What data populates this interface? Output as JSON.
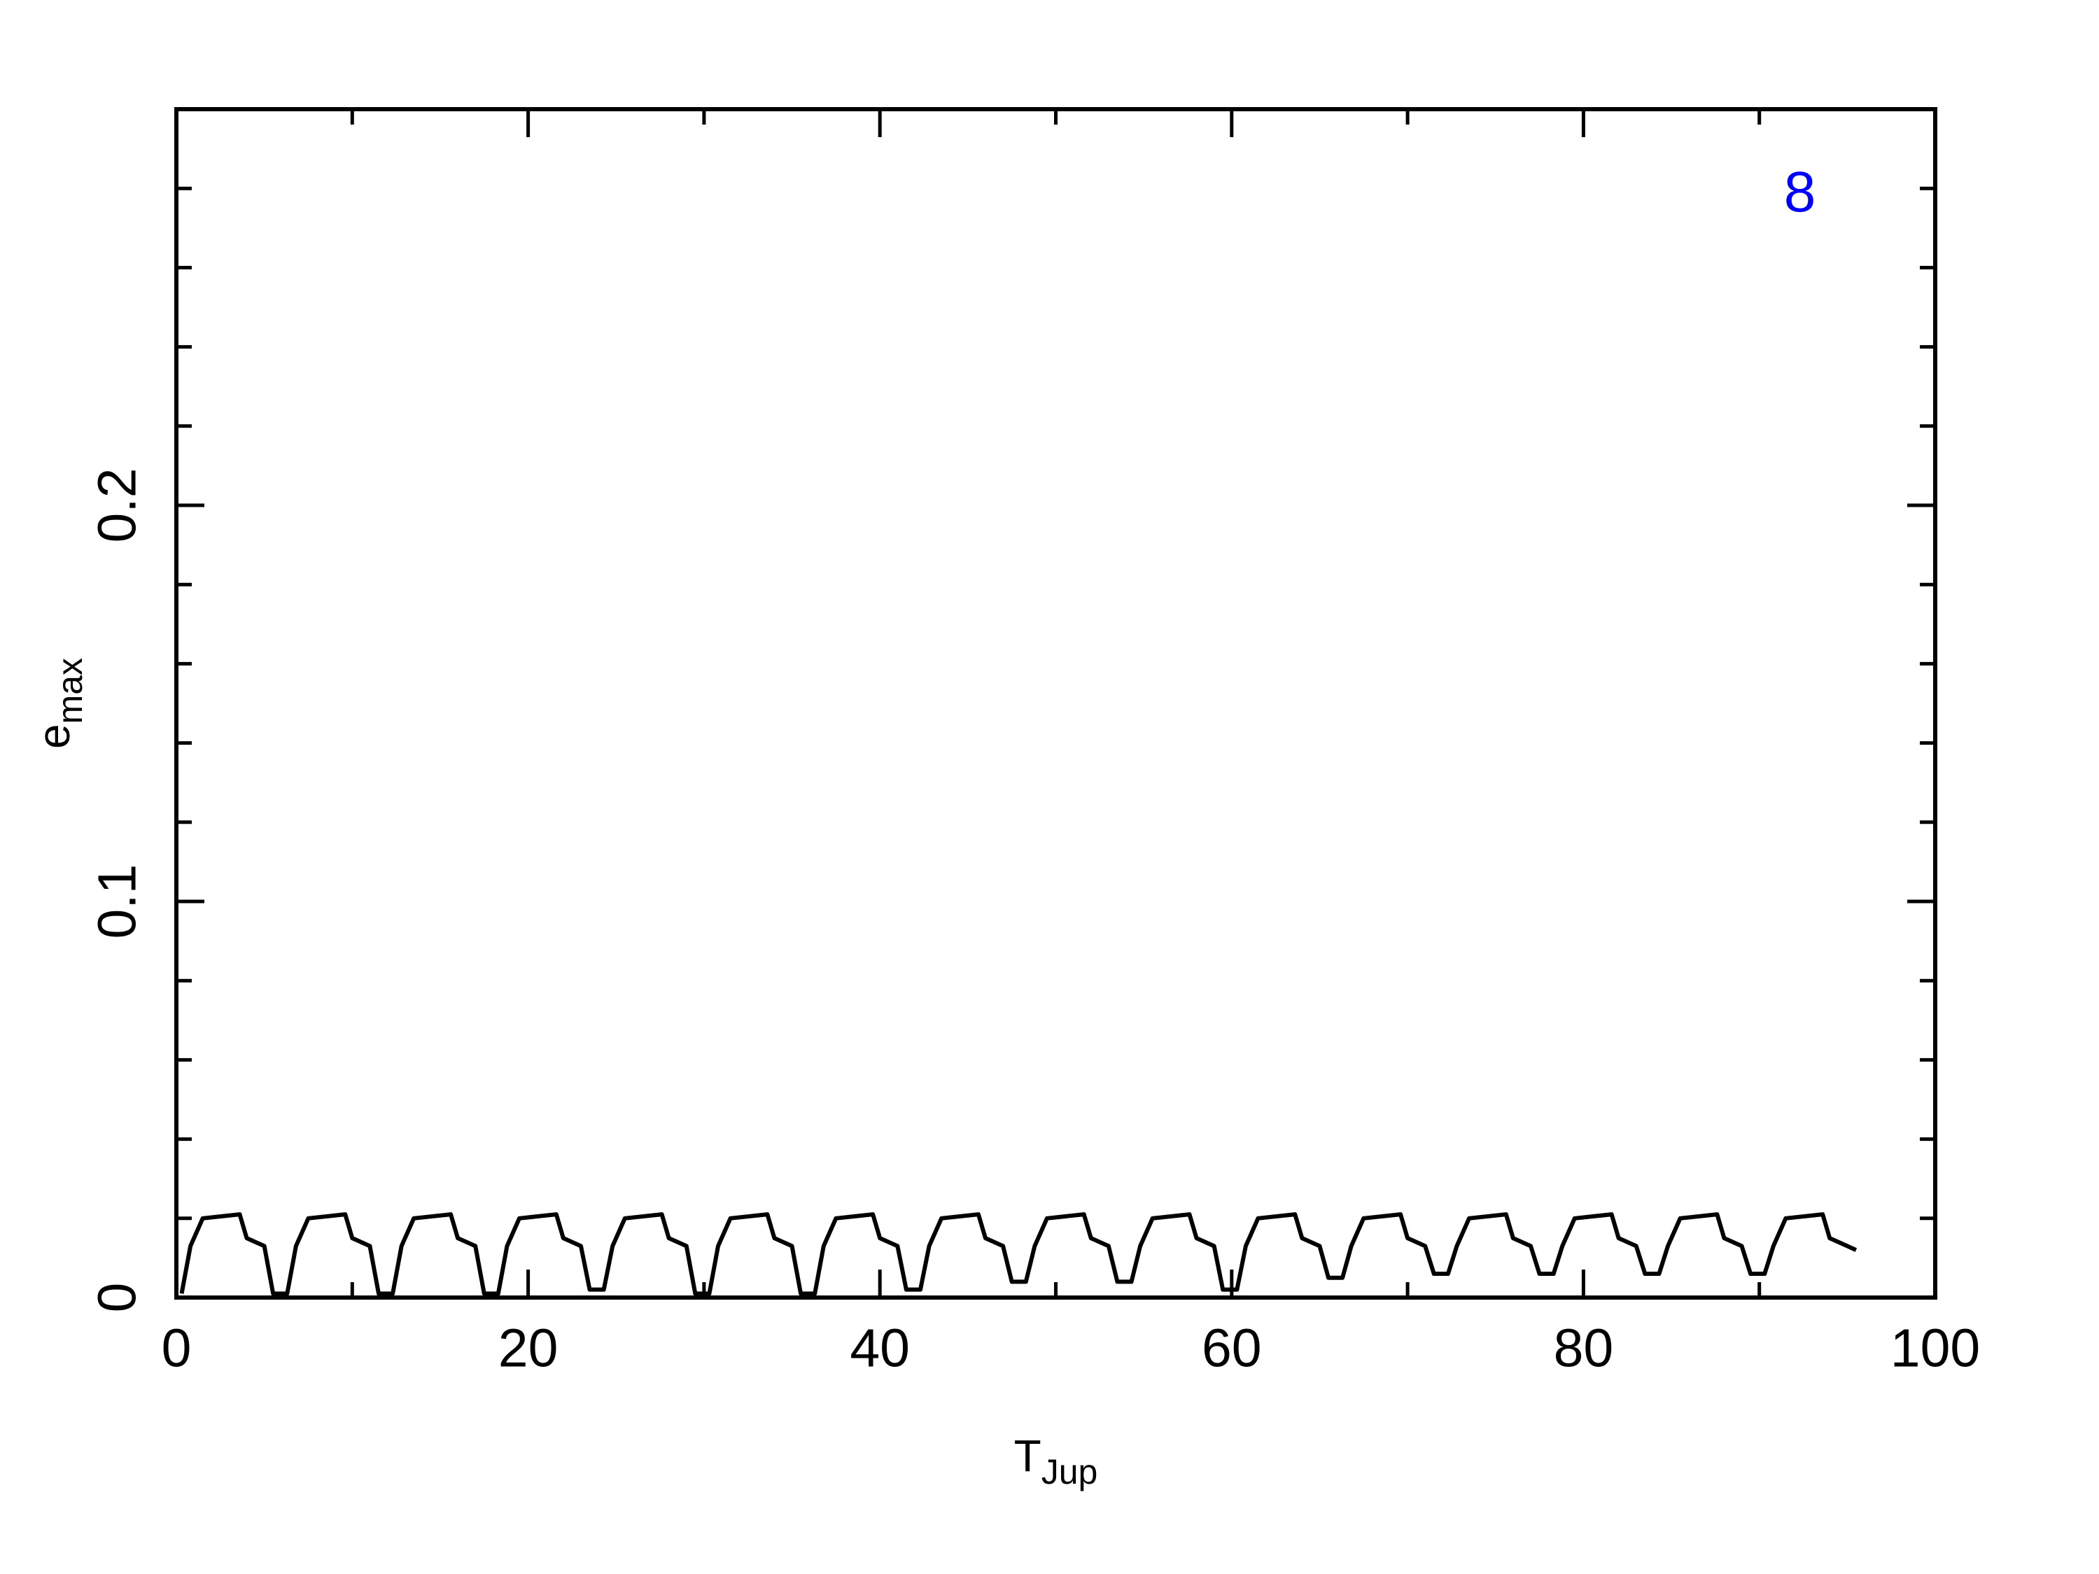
{
  "chart_data": {
    "type": "line",
    "xlabel": {
      "main": "T",
      "sub": "Jup"
    },
    "ylabel": {
      "main": "e",
      "sub": "max"
    },
    "annotation": {
      "text": "8",
      "x": 92.3,
      "y": 0.278,
      "color": "#0000ff"
    },
    "xlim": [
      0,
      100
    ],
    "ylim": [
      0,
      0.3
    ],
    "xticks": [
      0,
      20,
      40,
      60,
      80,
      100
    ],
    "yticks": [
      0,
      0.1,
      0.2
    ],
    "xminorticks": [
      10,
      30,
      50,
      70,
      90
    ],
    "yminorticks": [
      0.02,
      0.04,
      0.06,
      0.08,
      0.12,
      0.14,
      0.16,
      0.18,
      0.22,
      0.24,
      0.26,
      0.28
    ],
    "x": [
      0.3,
      0.8,
      1.5,
      3.6,
      4,
      5,
      5.5,
      6.3,
      6.8,
      7.5,
      9.6,
      10,
      11,
      11.5,
      12.3,
      12.8,
      13.5,
      15.6,
      16,
      17,
      17.5,
      18.3,
      18.8,
      19.5,
      21.6,
      22,
      23,
      23.5,
      24.3,
      24.8,
      25.5,
      27.6,
      28,
      29,
      29.5,
      30.3,
      30.8,
      31.5,
      33.6,
      34,
      35,
      35.5,
      36.3,
      36.8,
      37.5,
      39.6,
      40,
      41,
      41.5,
      42.3,
      42.8,
      43.5,
      45.6,
      46,
      47,
      47.5,
      48.3,
      48.8,
      49.5,
      51.6,
      52,
      53,
      53.5,
      54.3,
      54.8,
      55.5,
      57.6,
      58,
      59,
      59.5,
      60.3,
      60.8,
      61.5,
      63.6,
      64,
      65,
      65.5,
      66.3,
      66.8,
      67.5,
      69.6,
      70,
      71,
      71.5,
      72.3,
      72.8,
      73.5,
      75.6,
      76,
      77,
      77.5,
      78.3,
      78.8,
      79.5,
      81.6,
      82,
      83,
      83.5,
      84.3,
      84.8,
      85.5,
      87.6,
      88,
      89,
      89.5,
      90.3,
      90.8,
      91.5,
      93.6,
      94,
      95,
      95.5
    ],
    "series": [
      {
        "color": "#000000",
        "values": [
          0.001,
          0.013,
          0.02,
          0.021,
          0.015,
          0.013,
          0.001,
          0.001,
          0.013,
          0.02,
          0.021,
          0.015,
          0.013,
          0.001,
          0.001,
          0.013,
          0.02,
          0.021,
          0.015,
          0.013,
          0.001,
          0.001,
          0.013,
          0.02,
          0.021,
          0.015,
          0.013,
          0.002,
          0.002,
          0.013,
          0.02,
          0.021,
          0.015,
          0.013,
          0.001,
          0.001,
          0.013,
          0.02,
          0.021,
          0.015,
          0.013,
          0.001,
          0.001,
          0.013,
          0.02,
          0.021,
          0.015,
          0.013,
          0.002,
          0.002,
          0.013,
          0.02,
          0.021,
          0.015,
          0.013,
          0.004,
          0.004,
          0.013,
          0.02,
          0.021,
          0.015,
          0.013,
          0.004,
          0.004,
          0.013,
          0.02,
          0.021,
          0.015,
          0.013,
          0.002,
          0.002,
          0.013,
          0.02,
          0.021,
          0.015,
          0.013,
          0.005,
          0.005,
          0.013,
          0.02,
          0.021,
          0.015,
          0.013,
          0.006,
          0.006,
          0.013,
          0.02,
          0.021,
          0.015,
          0.013,
          0.006,
          0.006,
          0.013,
          0.02,
          0.021,
          0.015,
          0.013,
          0.006,
          0.006,
          0.013,
          0.02,
          0.021,
          0.015,
          0.013,
          0.006,
          0.006,
          0.013,
          0.02,
          0.021,
          0.015,
          0.013,
          0.012
        ]
      }
    ]
  }
}
